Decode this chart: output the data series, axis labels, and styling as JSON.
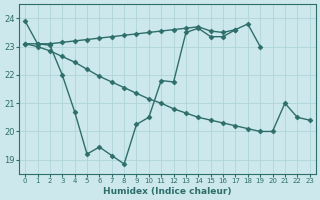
{
  "xlabel": "Humidex (Indice chaleur)",
  "bg_color": "#cce8ec",
  "grid_color": "#b0d4d8",
  "line_color": "#2e6e6a",
  "marker": "D",
  "markersize": 2.5,
  "linewidth": 1.0,
  "xlim": [
    -0.5,
    23.5
  ],
  "ylim": [
    18.5,
    24.5
  ],
  "yticks": [
    19,
    20,
    21,
    22,
    23,
    24
  ],
  "xticks": [
    0,
    1,
    2,
    3,
    4,
    5,
    6,
    7,
    8,
    9,
    10,
    11,
    12,
    13,
    14,
    15,
    16,
    17,
    18,
    19,
    20,
    21,
    22,
    23
  ],
  "line1_y": [
    23.9,
    23.1,
    23.05,
    22.0,
    20.7,
    19.2,
    19.45,
    19.15,
    18.85,
    20.25,
    20.5,
    21.8,
    21.75,
    23.5,
    23.65,
    23.35,
    23.35,
    23.6,
    null,
    null,
    null,
    null,
    null,
    null
  ],
  "line2_y": [
    23.1,
    23.1,
    23.1,
    23.15,
    23.2,
    23.25,
    23.3,
    23.35,
    23.4,
    23.45,
    23.5,
    23.55,
    23.6,
    23.65,
    23.7,
    23.55,
    23.5,
    23.6,
    23.8,
    23.0,
    null,
    null,
    null,
    null
  ],
  "line3_y": [
    23.1,
    23.0,
    22.85,
    22.65,
    22.45,
    22.2,
    21.95,
    21.75,
    21.55,
    21.35,
    21.15,
    21.0,
    20.8,
    20.65,
    20.5,
    20.4,
    20.3,
    20.2,
    20.1,
    20.0,
    20.0,
    21.0,
    20.5,
    20.4
  ]
}
